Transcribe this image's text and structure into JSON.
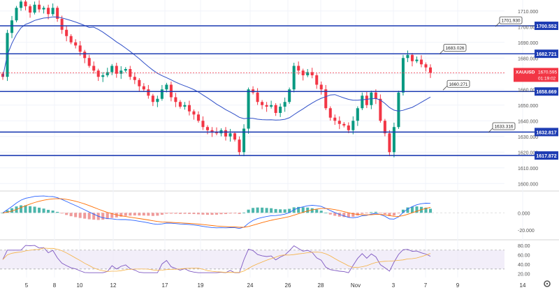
{
  "chart_data": {
    "type": "candlestick",
    "symbol": "XAUUSD",
    "x_tick_labels": [
      "5",
      "8",
      "10",
      "12",
      "17",
      "19",
      "24",
      "26",
      "28",
      "Nov",
      "3",
      "7",
      "9",
      "14"
    ],
    "price_axis": {
      "ticks": [
        "1710.000",
        "1700.000",
        "1690.000",
        "1680.000",
        "1670.000",
        "1660.000",
        "1650.000",
        "1640.000",
        "1630.000",
        "1620.000",
        "1610.000",
        "1600.000"
      ],
      "ylim": [
        1597,
        1717
      ]
    },
    "horizontal_levels": [
      {
        "value": 1700.552,
        "label": "1700.552",
        "color": "#1e3db3"
      },
      {
        "value": 1682.721,
        "label": "1682.721",
        "color": "#1e3db3"
      },
      {
        "value": 1658.669,
        "label": "1658.669",
        "color": "#1e3db3"
      },
      {
        "value": 1632.817,
        "label": "1632.817",
        "color": "#1e3db3"
      },
      {
        "value": 1617.872,
        "label": "1617.872",
        "color": "#1e3db3"
      }
    ],
    "callouts": [
      {
        "label": "1701.930",
        "value": 1704.5
      },
      {
        "label": "1683.026",
        "value": 1687.0
      },
      {
        "label": "1660.271",
        "value": 1664.0
      },
      {
        "label": "1633.316",
        "value": 1637.0
      }
    ],
    "last_price": {
      "symbol": "XAUUSD",
      "price": "1670.595",
      "countdown": "01:19:02",
      "value": 1670.595,
      "color": "#f23645"
    },
    "closes": [
      1668,
      1696,
      1704,
      1712,
      1716,
      1713,
      1709,
      1714,
      1711,
      1712,
      1708,
      1712,
      1705,
      1698,
      1694,
      1690,
      1688,
      1684,
      1680,
      1675,
      1672,
      1668,
      1669,
      1671,
      1675,
      1670,
      1672,
      1673,
      1668,
      1666,
      1662,
      1660,
      1656,
      1652,
      1654,
      1660,
      1663,
      1655,
      1652,
      1649,
      1650,
      1646,
      1644,
      1640,
      1636,
      1634,
      1633,
      1632,
      1634,
      1630,
      1632,
      1628,
      1620,
      1635,
      1660,
      1658,
      1652,
      1650,
      1649,
      1650,
      1645,
      1649,
      1652,
      1660,
      1675,
      1672,
      1669,
      1671,
      1669,
      1663,
      1660,
      1648,
      1642,
      1640,
      1638,
      1637,
      1634,
      1640,
      1648,
      1656,
      1650,
      1658,
      1654,
      1640,
      1632,
      1620,
      1636,
      1658,
      1680,
      1682,
      1678,
      1679,
      1676,
      1674,
      1670.6
    ],
    "moving_average_color": "#3050c8",
    "macd": {
      "ticks": [
        "0.000",
        "-20.000"
      ],
      "ylim": [
        -28,
        22
      ]
    },
    "rsi": {
      "ticks": [
        "80.00",
        "60.00",
        "40.00",
        "20.00"
      ],
      "ylim": [
        12,
        86
      ],
      "band": [
        30,
        70
      ]
    },
    "colors": {
      "up": "#089981",
      "down": "#f23645",
      "level": "#1e3db3",
      "ma": "#3050c8",
      "rsi": "#7e57c2",
      "rsi_ma": "#f5b041",
      "macd_line": "#2962ff",
      "signal_line": "#ff6d00"
    }
  }
}
